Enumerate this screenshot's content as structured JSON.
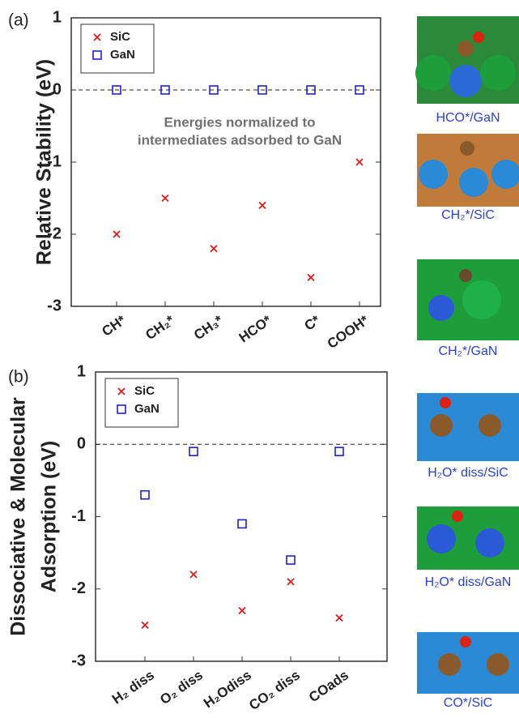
{
  "chart_data": [
    {
      "type": "scatter",
      "panel_label": "(a)",
      "ylabel": [
        "Relative Stability (eV)"
      ],
      "categories": [
        "CH*",
        "CH₂*",
        "CH₃*",
        "HCO*",
        "C*",
        "COOH*"
      ],
      "series": [
        {
          "name": "SiC",
          "color": "#e31a1c",
          "marker": "x",
          "values": [
            -2.0,
            -1.5,
            -2.2,
            -1.6,
            -2.6,
            -1.0
          ]
        },
        {
          "name": "GaN",
          "color": "#1f1fd6",
          "marker": "square",
          "values": [
            0,
            0,
            0,
            0,
            0,
            0
          ]
        }
      ],
      "ylim": [
        -3,
        1
      ],
      "yticks": [
        -3,
        -2,
        -1,
        0,
        1
      ],
      "reference_line": 0,
      "annotation": [
        "Energies normalized to",
        "intermediates adsorbed to GaN"
      ],
      "legend": "upper left"
    },
    {
      "type": "scatter",
      "panel_label": "(b)",
      "ylabel": [
        "Dissociative & Molecular",
        "Adsorption (eV)"
      ],
      "categories": [
        "H₂ diss",
        "O₂ diss",
        "H₂Odiss",
        "CO₂ diss",
        "COads"
      ],
      "series": [
        {
          "name": "SiC",
          "color": "#e31a1c",
          "marker": "x",
          "values": [
            -2.5,
            -1.8,
            -2.3,
            -1.9,
            -2.4
          ]
        },
        {
          "name": "GaN",
          "color": "#1f1fd6",
          "marker": "square",
          "values": [
            -0.7,
            -0.1,
            -1.1,
            -1.6,
            -0.1
          ]
        }
      ],
      "ylim": [
        -3,
        1
      ],
      "yticks": [
        -3,
        -2,
        -1,
        0,
        1
      ],
      "reference_line": 0,
      "legend": "upper left"
    }
  ],
  "images": [
    {
      "caption": "HCO*/GaN"
    },
    {
      "caption": "CH₂*/SiC"
    },
    {
      "caption": "CH₂*/GaN"
    },
    {
      "caption": "H₂O* diss/SiC"
    },
    {
      "caption": "H₂O* diss/GaN"
    },
    {
      "caption": "CO*/SiC"
    }
  ]
}
